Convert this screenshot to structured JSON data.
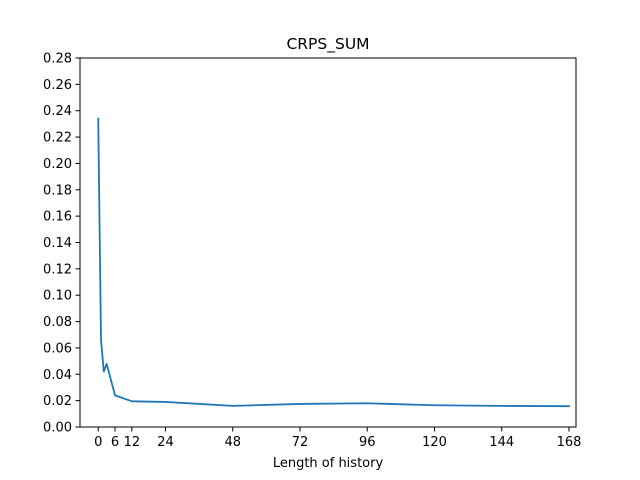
{
  "chart_data": {
    "type": "line",
    "title": "CRPS_SUM",
    "xlabel": "Length of history",
    "ylabel": "",
    "xlim": [
      -6.5,
      170.5
    ],
    "ylim": [
      0,
      0.28
    ],
    "xticks": [
      0,
      6,
      12,
      24,
      48,
      72,
      96,
      120,
      144,
      168
    ],
    "yticks": [
      0.0,
      0.02,
      0.04,
      0.06,
      0.08,
      0.1,
      0.12,
      0.14,
      0.16,
      0.18,
      0.2,
      0.22,
      0.24,
      0.26,
      0.28
    ],
    "ytick_labels": [
      "0.00",
      "0.02",
      "0.04",
      "0.06",
      "0.08",
      "0.10",
      "0.12",
      "0.14",
      "0.16",
      "0.18",
      "0.20",
      "0.22",
      "0.24",
      "0.26",
      "0.28"
    ],
    "grid": false,
    "series": [
      {
        "color": "#1f77b4",
        "x": [
          0,
          1,
          2,
          3,
          6,
          12,
          24,
          48,
          72,
          96,
          120,
          144,
          168
        ],
        "values": [
          0.234,
          0.066,
          0.042,
          0.048,
          0.024,
          0.0195,
          0.019,
          0.016,
          0.0175,
          0.018,
          0.0165,
          0.016,
          0.0158
        ]
      }
    ]
  }
}
